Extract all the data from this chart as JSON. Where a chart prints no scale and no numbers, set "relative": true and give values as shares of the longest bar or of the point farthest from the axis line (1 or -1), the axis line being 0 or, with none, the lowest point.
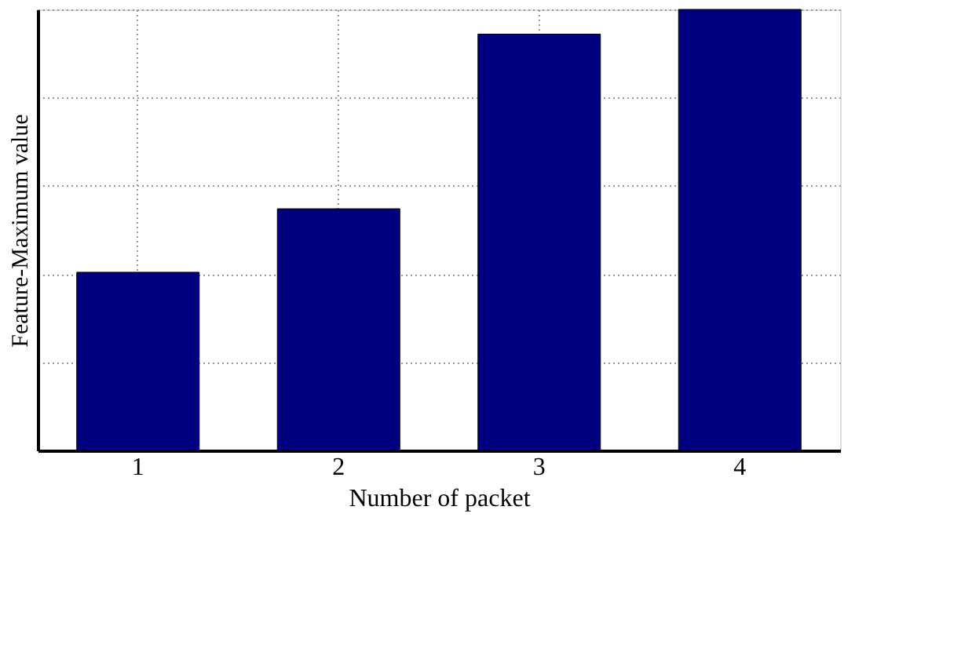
{
  "chart_data": {
    "type": "bar",
    "xlabel": "Number of packet",
    "ylabel": "Feature-Maximum value",
    "categories": [
      "1",
      "2",
      "3",
      "4"
    ],
    "values": [
      0.404,
      0.548,
      0.944,
      1.0
    ],
    "color": "#000080",
    "relative": true,
    "grid": true
  }
}
